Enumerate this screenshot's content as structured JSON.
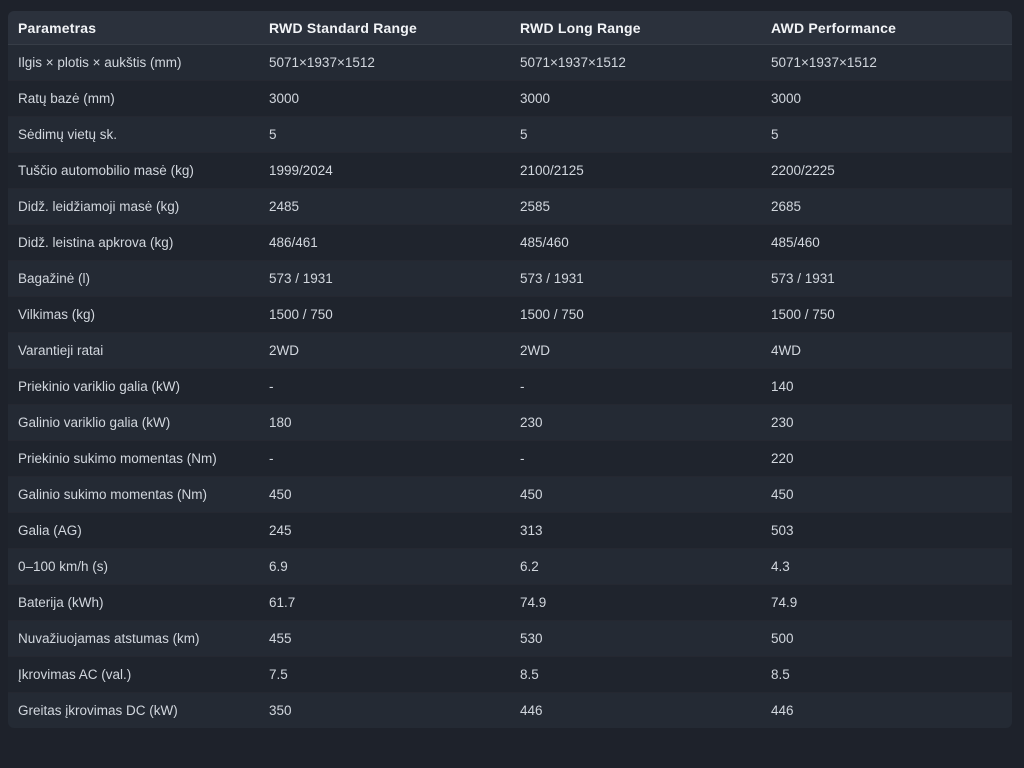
{
  "theme": {
    "page_bg": "#1e222b",
    "header_bg": "#2b313c",
    "row_odd_bg": "#242a34",
    "row_even_bg": "#1f242d",
    "header_text": "#f2f4f7",
    "cell_text": "#d2d7de"
  },
  "table": {
    "columns": [
      "Parametras",
      "RWD Standard Range",
      "RWD Long Range",
      "AWD Performance"
    ],
    "rows": [
      {
        "param": "Ilgis × plotis × aukštis (mm)",
        "values": [
          "5071×1937×1512",
          "5071×1937×1512",
          "5071×1937×1512"
        ]
      },
      {
        "param": "Ratų bazė (mm)",
        "values": [
          "3000",
          "3000",
          "3000"
        ]
      },
      {
        "param": "Sėdimų vietų sk.",
        "values": [
          "5",
          "5",
          "5"
        ]
      },
      {
        "param": "Tuščio automobilio masė (kg)",
        "values": [
          "1999/2024",
          "2100/2125",
          "2200/2225"
        ]
      },
      {
        "param": "Didž. leidžiamoji masė (kg)",
        "values": [
          "2485",
          "2585",
          "2685"
        ]
      },
      {
        "param": "Didž. leistina apkrova (kg)",
        "values": [
          "486/461",
          "485/460",
          "485/460"
        ]
      },
      {
        "param": "Bagažinė (l)",
        "values": [
          "573 / 1931",
          "573 / 1931",
          "573 / 1931"
        ]
      },
      {
        "param": "Vilkimas (kg)",
        "values": [
          "1500 / 750",
          "1500 / 750",
          "1500 / 750"
        ]
      },
      {
        "param": "Varantieji ratai",
        "values": [
          "2WD",
          "2WD",
          "4WD"
        ]
      },
      {
        "param": "Priekinio variklio galia (kW)",
        "values": [
          "-",
          "-",
          "140"
        ]
      },
      {
        "param": "Galinio variklio galia (kW)",
        "values": [
          "180",
          "230",
          "230"
        ]
      },
      {
        "param": "Priekinio sukimo momentas (Nm)",
        "values": [
          "-",
          "-",
          "220"
        ]
      },
      {
        "param": "Galinio sukimo momentas (Nm)",
        "values": [
          "450",
          "450",
          "450"
        ]
      },
      {
        "param": "Galia (AG)",
        "values": [
          "245",
          "313",
          "503"
        ]
      },
      {
        "param": "0–100 km/h (s)",
        "values": [
          "6.9",
          "6.2",
          "4.3"
        ]
      },
      {
        "param": "Baterija (kWh)",
        "values": [
          "61.7",
          "74.9",
          "74.9"
        ]
      },
      {
        "param": "Nuvažiuojamas atstumas (km)",
        "values": [
          "455",
          "530",
          "500"
        ]
      },
      {
        "param": "Įkrovimas AC (val.)",
        "values": [
          "7.5",
          "8.5",
          "8.5"
        ]
      },
      {
        "param": "Greitas įkrovimas DC (kW)",
        "values": [
          "350",
          "446",
          "446"
        ]
      }
    ]
  }
}
